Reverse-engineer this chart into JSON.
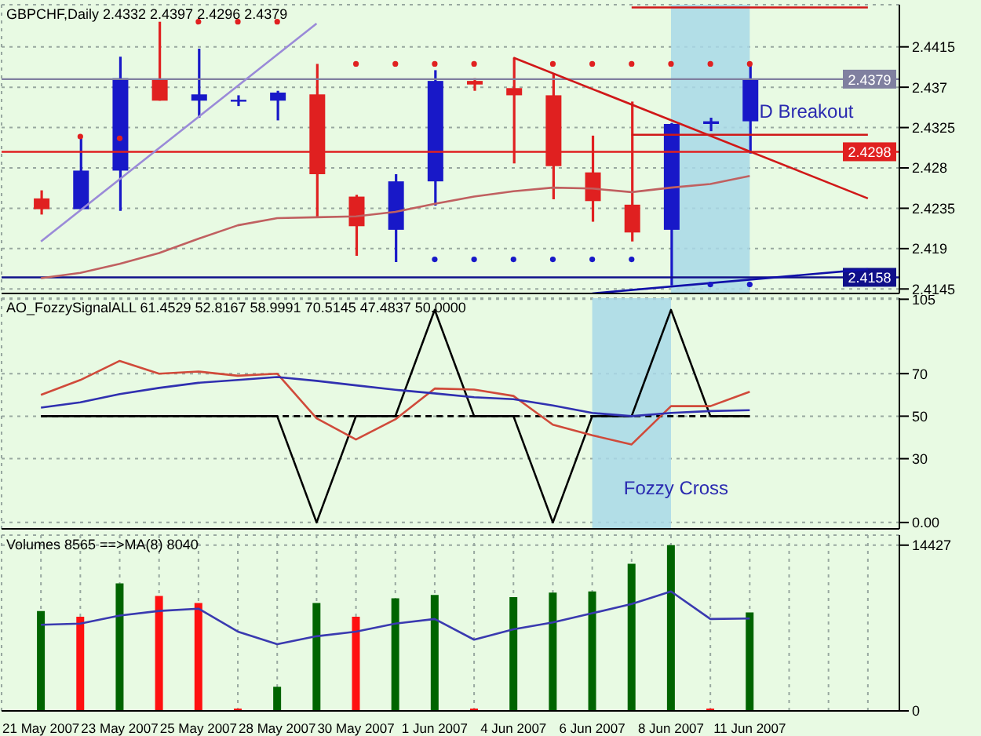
{
  "chart_data": [
    {
      "type": "candlestick",
      "title": "GBPCHF,Daily 2.4332 2.4397 2.4296 2.4379",
      "categories": [
        "21 May 2007",
        null,
        "23 May 2007",
        null,
        "25 May 2007",
        null,
        "28 May 2007",
        null,
        "30 May 2007",
        null,
        "1 Jun 2007",
        null,
        "4 Jun 2007",
        null,
        "6 Jun 2007",
        null,
        "8 Jun 2007",
        null,
        "11 Jun 2007",
        null,
        null,
        null
      ],
      "ohlc": [
        [
          2.4246,
          2.4255,
          2.4228,
          2.4234
        ],
        [
          2.4234,
          2.4313,
          2.4234,
          2.4277
        ],
        [
          2.4277,
          2.4404,
          2.4232,
          2.438
        ],
        [
          2.4379,
          2.4443,
          2.4355,
          2.4355
        ],
        [
          2.4355,
          2.4413,
          2.4336,
          2.4362
        ],
        [
          2.4354,
          2.4361,
          2.4349,
          2.4356
        ],
        [
          2.4355,
          2.4366,
          2.4333,
          2.4364
        ],
        [
          2.4362,
          2.4396,
          2.4224,
          2.4273
        ],
        [
          2.4248,
          2.425,
          2.4182,
          2.4215
        ],
        [
          2.4211,
          2.4273,
          2.4175,
          2.4265
        ],
        [
          2.4265,
          2.4389,
          2.4238,
          2.4377
        ],
        [
          2.4377,
          2.438,
          2.4366,
          2.4373
        ],
        [
          2.4369,
          2.4403,
          2.4285,
          2.4361
        ],
        [
          2.4361,
          2.4385,
          2.4245,
          2.4282
        ],
        [
          2.4275,
          2.4316,
          2.422,
          2.4243
        ],
        [
          2.4239,
          2.4354,
          2.4198,
          2.4208
        ],
        [
          2.4211,
          2.433,
          2.4149,
          2.4329
        ],
        [
          2.4329,
          2.4336,
          2.4321,
          2.4332
        ],
        [
          2.4332,
          2.4397,
          2.4296,
          2.4379
        ],
        null,
        null,
        null
      ],
      "colors": [
        "#e02020",
        "#1818c8",
        "#1818c8",
        "#e02020",
        "#1818c8",
        "#1818c8",
        "#1818c8",
        "#e02020",
        "#e02020",
        "#1818c8",
        "#1818c8",
        "#e02020",
        "#e02020",
        "#e02020",
        "#e02020",
        "#e02020",
        "#1818c8",
        "#1818c8",
        "#1818c8",
        null,
        null,
        null
      ],
      "series": [
        {
          "type": "line",
          "color": "#c06060",
          "values": [
            2.4157,
            2.4163,
            2.4173,
            2.4185,
            2.4201,
            2.4216,
            2.4224,
            2.4225,
            2.4226,
            2.4231,
            2.424,
            2.4248,
            2.4254,
            2.4258,
            2.4257,
            2.4253,
            2.4258,
            2.4262,
            2.4271,
            null,
            null,
            null
          ]
        },
        {
          "type": "line",
          "color": "#9a8ad8",
          "values": [
            2.4198,
            null,
            null,
            null,
            null,
            null,
            null,
            2.4441,
            null,
            null,
            null,
            null,
            null,
            null,
            null,
            null,
            null,
            null,
            null,
            null,
            null,
            null
          ]
        },
        {
          "type": "line",
          "color": "#d01818",
          "values": [
            null,
            null,
            null,
            null,
            null,
            null,
            null,
            null,
            null,
            null,
            null,
            null,
            2.4403,
            null,
            null,
            null,
            null,
            null,
            null,
            null,
            null,
            2.4246
          ]
        },
        {
          "type": "line",
          "color": "#1010a8",
          "values": [
            null,
            null,
            null,
            null,
            null,
            null,
            null,
            null,
            null,
            null,
            null,
            null,
            null,
            null,
            2.414,
            null,
            null,
            null,
            null,
            null,
            null,
            2.4167
          ]
        },
        {
          "type": "line",
          "color": "#d01818",
          "values": [
            null,
            null,
            null,
            null,
            null,
            null,
            null,
            null,
            null,
            null,
            null,
            null,
            null,
            null,
            null,
            2.4317,
            2.4317,
            2.4317,
            2.4317,
            2.4317,
            2.4317,
            2.4317
          ]
        },
        {
          "type": "line",
          "color": "#d01818",
          "values": [
            null,
            null,
            null,
            null,
            null,
            null,
            null,
            null,
            null,
            null,
            null,
            null,
            null,
            null,
            null,
            2.4459,
            2.4459,
            2.4459,
            2.4459,
            2.4459,
            2.4459,
            2.4459
          ]
        },
        {
          "type": "scatter",
          "color": "#e02020",
          "marker": "circle",
          "values": [
            null,
            2.4315,
            2.4313,
            null,
            2.4443,
            2.4443,
            2.4443,
            null,
            2.4396,
            2.4396,
            2.4396,
            2.4396,
            null,
            2.4396,
            2.4396,
            2.4396,
            2.4396,
            2.4396,
            2.4396,
            null,
            null,
            null
          ]
        },
        {
          "type": "scatter",
          "color": "#1818c8",
          "marker": "circle",
          "values": [
            null,
            null,
            null,
            null,
            null,
            null,
            null,
            null,
            null,
            null,
            2.4178,
            2.4178,
            2.4178,
            2.4178,
            2.4178,
            2.4178,
            null,
            2.415,
            2.415,
            null,
            null,
            null
          ]
        }
      ],
      "ref_lines": [
        {
          "axis": "y",
          "value": 2.4379,
          "label": "2.4379",
          "color": "#8080a0"
        },
        {
          "axis": "y",
          "value": 2.4298,
          "label": "2.4298",
          "color": "#e02020"
        },
        {
          "axis": "y",
          "value": 2.4158,
          "label": "2.4158",
          "color": "#10108a"
        }
      ],
      "bands": [
        {
          "axis": "x",
          "from": "8 Jun 2007",
          "to": "11 Jun 2007",
          "label": "D Breakout",
          "color": "#a8d8e8"
        }
      ],
      "ylim": [
        2.414,
        2.4462
      ],
      "yticks": [
        2.4415,
        2.437,
        2.4325,
        2.428,
        2.4235,
        2.419,
        2.4145
      ],
      "grid": true,
      "tick_labels": "y"
    },
    {
      "type": "line",
      "title": "AO_FozzySignalALL 61.4529 52.8167 58.9991 70.5145 47.4837 50.0000",
      "categories": [
        "21 May 2007",
        null,
        "23 May 2007",
        null,
        "25 May 2007",
        null,
        "28 May 2007",
        null,
        "30 May 2007",
        null,
        "1 Jun 2007",
        null,
        "4 Jun 2007",
        null,
        "6 Jun 2007",
        null,
        "8 Jun 2007",
        null,
        "11 Jun 2007",
        null,
        null,
        null
      ],
      "series": [
        {
          "color": "#000000",
          "line_style": "dashed",
          "values": [
            50,
            50,
            50,
            50,
            50,
            50,
            50,
            50,
            50,
            50,
            50,
            50,
            50,
            50,
            50,
            50,
            50,
            50,
            50,
            null,
            null,
            null
          ]
        },
        {
          "color": "#000000",
          "values": [
            50,
            50,
            50,
            50,
            50,
            50,
            50,
            0,
            50,
            50,
            100,
            50,
            50,
            0,
            50,
            50,
            100,
            50,
            50,
            null,
            null,
            null
          ]
        },
        {
          "color": "#d04a3a",
          "values": [
            60,
            67,
            76,
            70,
            71,
            69,
            70,
            49,
            39,
            48.5,
            63,
            62.5,
            59.5,
            46,
            41,
            36.7,
            54.7,
            54.7,
            61.5,
            null,
            null,
            null
          ]
        },
        {
          "color": "#3030b0",
          "values": [
            54,
            56.5,
            60.4,
            63.3,
            65.7,
            67,
            68.4,
            66.6,
            64.5,
            62.4,
            60.7,
            58.9,
            58,
            55,
            51.5,
            50,
            51.5,
            52.4,
            52.8,
            null,
            null,
            null
          ]
        }
      ],
      "bands": [
        {
          "axis": "x",
          "from": "6 Jun 2007",
          "to": "8 Jun 2007",
          "label": "Fozzy Cross",
          "color": "#a8d8e8"
        }
      ],
      "ylim": [
        -3,
        105.5
      ],
      "yticks": [
        105,
        70,
        50,
        30,
        {
          "value": 0,
          "label": "0.00"
        }
      ],
      "grid": true,
      "tick_labels": "y"
    },
    {
      "type": "bar",
      "title": "Volumes 8565 ==>MA(8) 8040",
      "categories": [
        "21 May 2007",
        null,
        "23 May 2007",
        null,
        "25 May 2007",
        null,
        "28 May 2007",
        null,
        "30 May 2007",
        null,
        "1 Jun 2007",
        null,
        "4 Jun 2007",
        null,
        "6 Jun 2007",
        null,
        "8 Jun 2007",
        null,
        "11 Jun 2007",
        null,
        null,
        null
      ],
      "series": [
        {
          "type": "bar",
          "values": [
            8700,
            8200,
            11100,
            10000,
            9400,
            200,
            2100,
            9400,
            8200,
            9800,
            10100,
            200,
            9900,
            10300,
            10400,
            12800,
            14427,
            200,
            8565,
            null,
            null,
            null
          ],
          "colors": [
            "#006400",
            "#ff1010",
            "#006400",
            "#ff1010",
            "#ff1010",
            "#ff1010",
            "#006400",
            "#006400",
            "#ff1010",
            "#006400",
            "#006400",
            "#ff1010",
            "#006400",
            "#006400",
            "#006400",
            "#006400",
            "#006400",
            "#ff1010",
            "#006400",
            null,
            null,
            null
          ]
        },
        {
          "type": "line",
          "color": "#3a3ab0",
          "values": [
            7500,
            7600,
            8300,
            8700,
            8900,
            6900,
            5800,
            6500,
            6900,
            7600,
            8000,
            6200,
            7100,
            7700,
            8500,
            9300,
            10400,
            8000,
            8040,
            null,
            null,
            null
          ]
        }
      ],
      "ylim": [
        0,
        15300
      ],
      "yticks": [
        14427,
        0
      ],
      "grid": true
    }
  ]
}
